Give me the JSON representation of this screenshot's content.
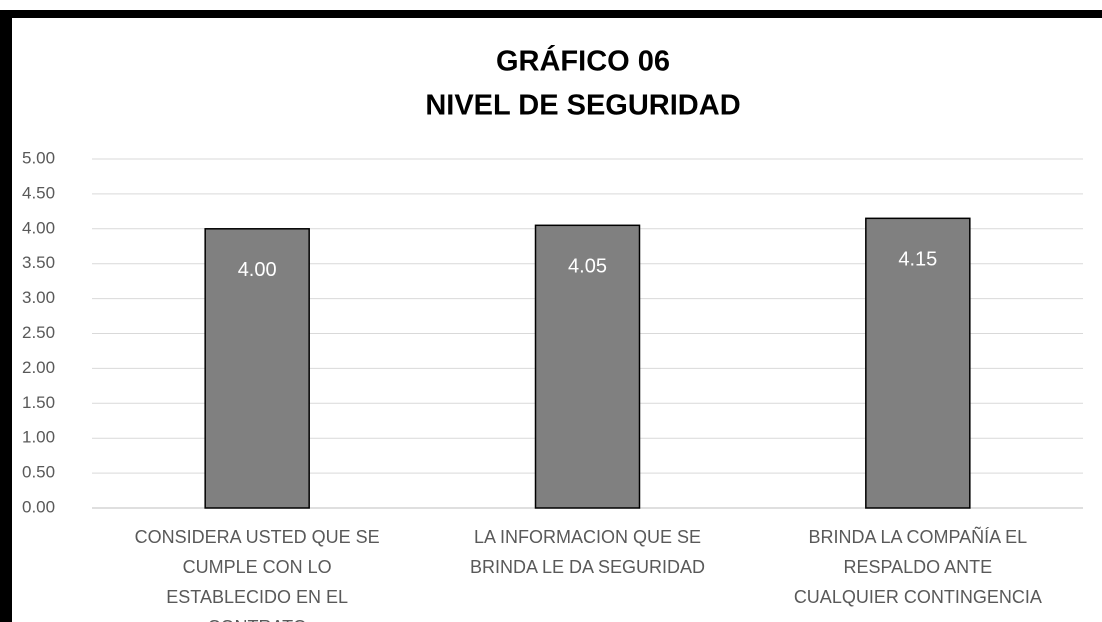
{
  "chart_data": {
    "type": "bar",
    "title": "GRÁFICO 06",
    "subtitle": "NIVEL DE SEGURIDAD",
    "categories": [
      "CONSIDERA USTED QUE SE CUMPLE CON LO ESTABLECIDO EN EL CONTRATO",
      "LA INFORMACION QUE SE BRINDA LE DA SEGURIDAD",
      "BRINDA LA COMPAÑÍA EL RESPALDO ANTE CUALQUIER CONTINGENCIA"
    ],
    "values": [
      4.0,
      4.05,
      4.15
    ],
    "value_labels": [
      "4.00",
      "4.05",
      "4.15"
    ],
    "color": "#808080",
    "ylim": [
      0,
      5
    ],
    "yticks": [
      {
        "value": 0,
        "label": "0.00"
      },
      {
        "value": 0.5,
        "label": "0.50"
      },
      {
        "value": 1,
        "label": "1.00"
      },
      {
        "value": 1.5,
        "label": "1.50"
      },
      {
        "value": 2,
        "label": "2.00"
      },
      {
        "value": 2.5,
        "label": "2.50"
      },
      {
        "value": 3,
        "label": "3.00"
      },
      {
        "value": 3.5,
        "label": "3.50"
      },
      {
        "value": 4,
        "label": "4.00"
      },
      {
        "value": 4.5,
        "label": "4.50"
      },
      {
        "value": 5,
        "label": "5.00"
      }
    ],
    "grid": true
  }
}
